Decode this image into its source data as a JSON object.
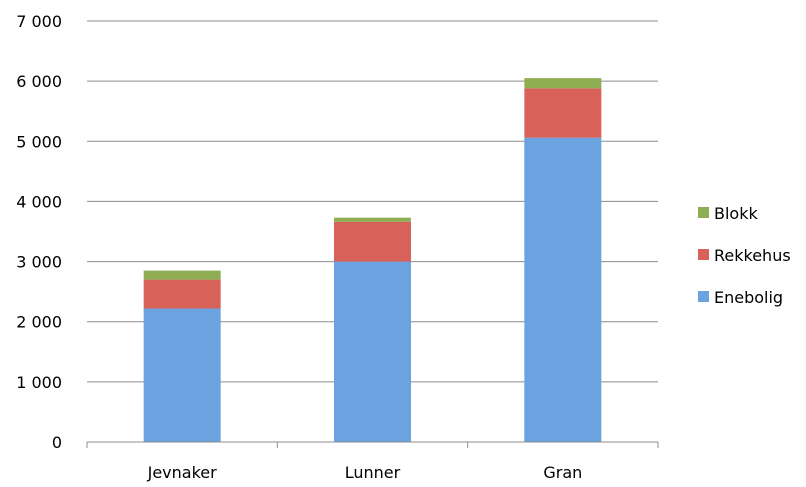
{
  "chart_data": {
    "type": "bar",
    "stacked": true,
    "categories": [
      "Jevnaker",
      "Lunner",
      "Gran"
    ],
    "series": [
      {
        "name": "Enebolig",
        "color": "#6aa3df",
        "values": [
          2220,
          3000,
          5060
        ]
      },
      {
        "name": "Rekkehus",
        "color": "#d8625a",
        "values": [
          480,
          660,
          820
        ]
      },
      {
        "name": "Blokk",
        "color": "#8fae54",
        "values": [
          150,
          70,
          170
        ]
      }
    ],
    "y_ticks": [
      "0",
      "1 000",
      "2 000",
      "3 000",
      "4 000",
      "5 000",
      "6 000",
      "7 000"
    ],
    "ylim": [
      0,
      7000
    ],
    "grid": true,
    "legend_position": "right",
    "legend_order": [
      "Blokk",
      "Rekkehus",
      "Enebolig"
    ]
  }
}
